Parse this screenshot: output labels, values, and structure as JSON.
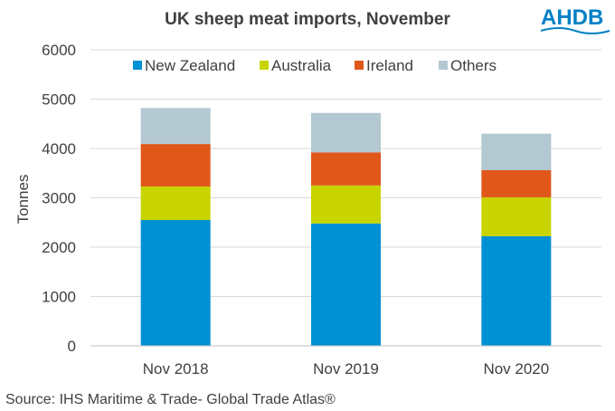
{
  "chart_data": {
    "type": "bar",
    "stacked": true,
    "title": "UK sheep meat imports,  November",
    "ylabel": "Tonnes",
    "xlabel": "",
    "ylim": [
      0,
      6000
    ],
    "yticks": [
      0,
      1000,
      2000,
      3000,
      4000,
      5000,
      6000
    ],
    "grid": true,
    "legend_position": "top",
    "categories": [
      "Nov 2018",
      "Nov 2019",
      "Nov 2020"
    ],
    "series": [
      {
        "name": "New Zealand",
        "color": "#0090D4",
        "values": [
          2550,
          2480,
          2220
        ]
      },
      {
        "name": "Australia",
        "color": "#C8D400",
        "values": [
          680,
          770,
          790
        ]
      },
      {
        "name": "Ireland",
        "color": "#E0571A",
        "values": [
          860,
          670,
          550
        ]
      },
      {
        "name": "Others",
        "color": "#B3C8D1",
        "values": [
          730,
          800,
          740
        ]
      }
    ]
  },
  "source": "Source: IHS Maritime & Trade- Global Trade Atlas®",
  "logo": {
    "text": "AHDB",
    "color": "#0081C6"
  }
}
